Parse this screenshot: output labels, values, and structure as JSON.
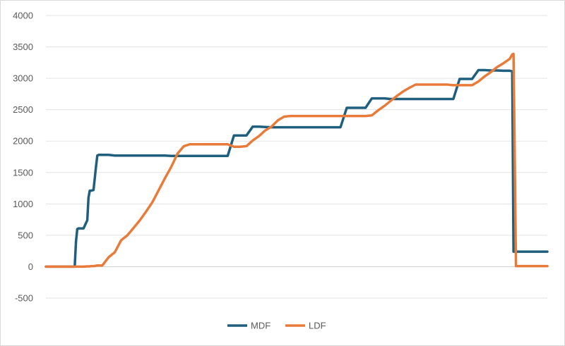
{
  "chart_data": {
    "type": "line",
    "title": "",
    "xlabel": "",
    "ylabel": "",
    "ylim": [
      -500,
      4000
    ],
    "yticks": [
      4000,
      3500,
      3000,
      2500,
      2000,
      1500,
      1000,
      500,
      0,
      -500
    ],
    "grid": true,
    "legend": "bottom-center",
    "x": [
      0,
      5,
      10,
      15,
      20,
      23,
      24,
      25,
      26,
      27,
      30,
      33,
      34,
      35,
      36,
      38,
      40,
      41,
      42,
      45,
      50,
      55,
      60,
      65,
      70,
      75,
      80,
      85,
      90,
      95,
      100,
      105,
      110,
      115,
      120,
      125,
      130,
      135,
      140,
      145,
      150,
      155,
      160,
      165,
      170,
      175,
      180,
      185,
      190,
      195,
      200,
      205,
      210,
      215,
      220,
      225,
      230,
      235,
      240,
      245,
      250,
      255,
      260,
      265,
      270,
      275,
      280,
      285,
      290,
      295,
      300,
      305,
      310,
      315,
      320,
      325,
      330,
      335,
      340,
      345,
      350,
      355,
      360,
      365,
      370,
      372,
      373,
      375,
      380,
      385,
      390,
      395,
      400
    ],
    "series": [
      {
        "name": "MDF",
        "color": "#1f5f7d",
        "values": [
          0,
          0,
          0,
          0,
          0,
          0,
          400,
          600,
          610,
          610,
          610,
          740,
          1100,
          1210,
          1210,
          1220,
          1600,
          1770,
          1780,
          1780,
          1780,
          1770,
          1770,
          1770,
          1770,
          1770,
          1770,
          1770,
          1770,
          1770,
          1765,
          1765,
          1765,
          1765,
          1765,
          1765,
          1765,
          1765,
          1765,
          1765,
          2090,
          2090,
          2090,
          2230,
          2230,
          2225,
          2220,
          2220,
          2220,
          2220,
          2220,
          2220,
          2220,
          2220,
          2220,
          2220,
          2220,
          2220,
          2530,
          2530,
          2530,
          2530,
          2680,
          2680,
          2680,
          2670,
          2670,
          2670,
          2670,
          2670,
          2670,
          2670,
          2670,
          2670,
          2670,
          2670,
          2990,
          2990,
          2990,
          3130,
          3130,
          3125,
          3125,
          3120,
          3120,
          3110,
          240,
          240,
          240,
          240,
          240,
          240,
          240
        ]
      },
      {
        "name": "LDF",
        "color": "#e97b3a",
        "values": [
          0,
          0,
          0,
          0,
          0,
          0,
          0,
          0,
          0,
          0,
          0,
          5,
          5,
          5,
          10,
          10,
          15,
          20,
          20,
          20,
          150,
          230,
          420,
          500,
          620,
          740,
          880,
          1030,
          1220,
          1410,
          1590,
          1800,
          1920,
          1950,
          1950,
          1950,
          1950,
          1950,
          1950,
          1950,
          1910,
          1910,
          1920,
          2010,
          2080,
          2170,
          2230,
          2330,
          2390,
          2400,
          2400,
          2400,
          2400,
          2400,
          2400,
          2400,
          2400,
          2400,
          2400,
          2400,
          2400,
          2400,
          2410,
          2490,
          2560,
          2640,
          2720,
          2790,
          2850,
          2900,
          2900,
          2900,
          2900,
          2900,
          2900,
          2890,
          2890,
          2890,
          2890,
          2950,
          3030,
          3100,
          3180,
          3240,
          3310,
          3380,
          3390,
          10,
          10,
          10,
          10,
          10,
          10
        ]
      }
    ]
  }
}
